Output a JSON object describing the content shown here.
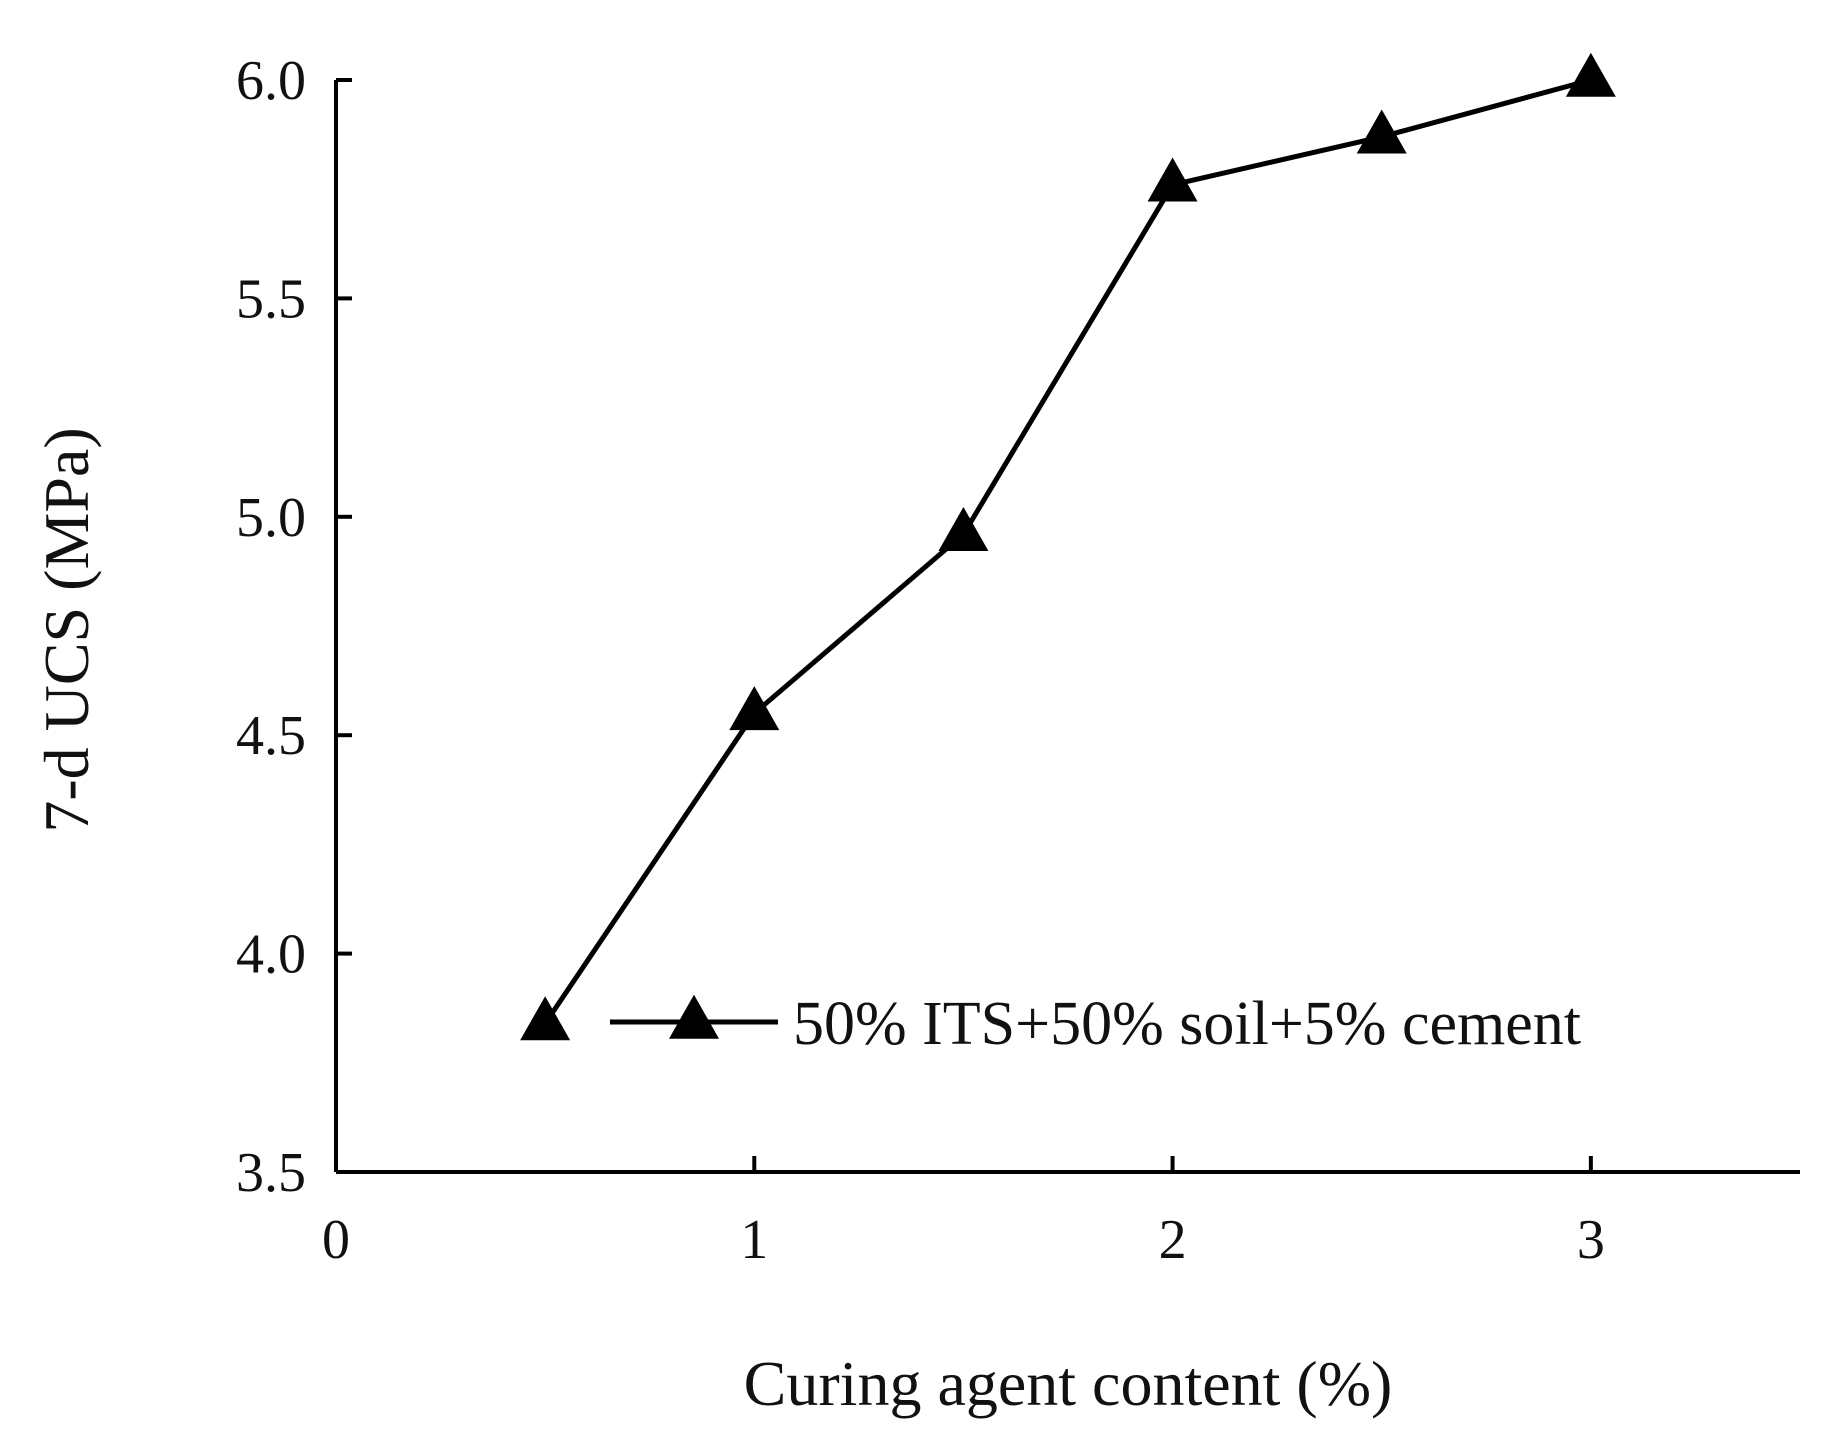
{
  "chart_data": {
    "type": "line",
    "title": "",
    "xlabel": "Curing agent content (%)",
    "ylabel": "7-d UCS (MPa)",
    "xlim": [
      0,
      3.5
    ],
    "ylim": [
      3.5,
      6.0
    ],
    "x_ticks": [
      0,
      1,
      2,
      3
    ],
    "x_tick_labels": [
      "0",
      "1",
      "2",
      "3"
    ],
    "y_ticks": [
      3.5,
      4.0,
      4.5,
      5.0,
      5.5,
      6.0
    ],
    "y_tick_labels": [
      "3.5",
      "4.0",
      "4.5",
      "5.0",
      "5.5",
      "6.0"
    ],
    "grid": false,
    "legend_position": "lower-right",
    "series": [
      {
        "name": "50% ITS+50% soil+5% cement",
        "marker": "triangle",
        "color": "#000000",
        "x": [
          0.5,
          1.0,
          1.5,
          2.0,
          2.5,
          3.0
        ],
        "y": [
          3.84,
          4.55,
          4.96,
          5.76,
          5.87,
          6.0
        ]
      }
    ]
  }
}
